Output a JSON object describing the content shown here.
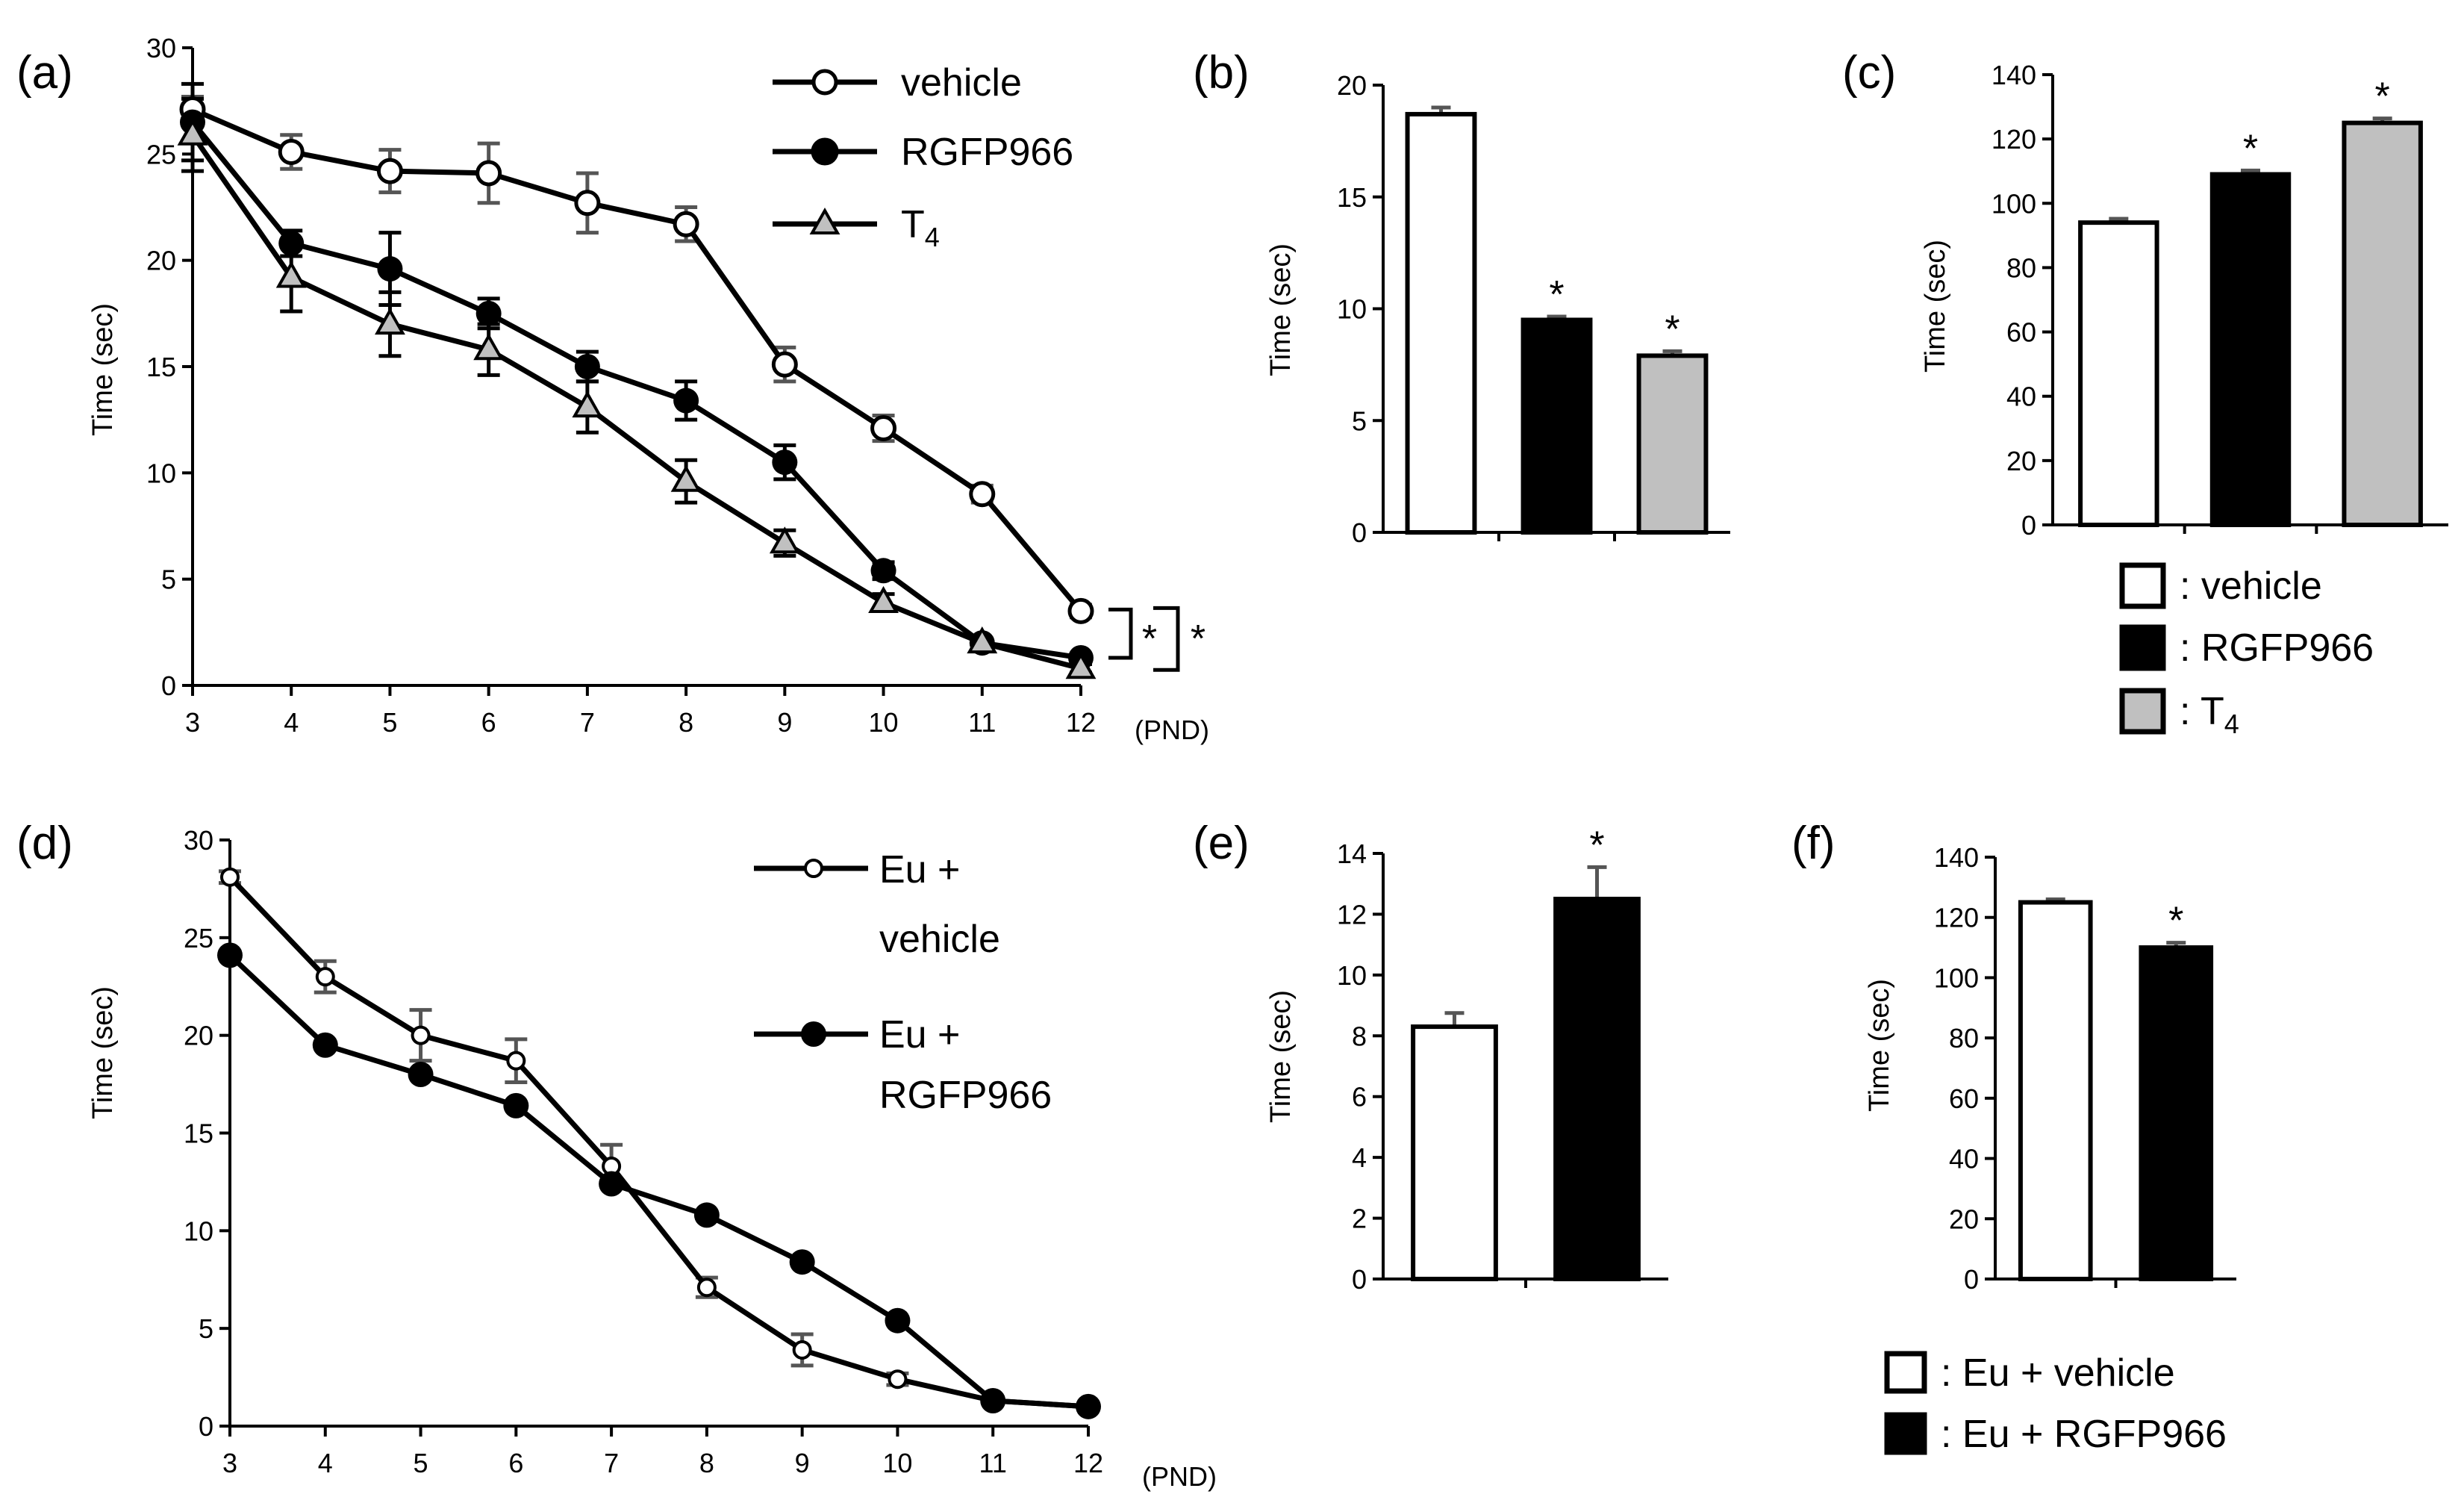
{
  "figure": {
    "colors": {
      "vehicle": "#ffffff",
      "rgfp966": "#000000",
      "t4": "#c0c0c0",
      "axis": "#000000",
      "errorbar": "#555555"
    },
    "legend_top": [
      {
        "label": "vehicle",
        "marker": "open-circle"
      },
      {
        "label": "RGFP966",
        "marker": "filled-circle"
      },
      {
        "label": "T",
        "sub": "4",
        "marker": "gray-triangle"
      }
    ],
    "legend_bottom": [
      {
        "label_line1": "Eu +",
        "label_line2": "vehicle",
        "marker": "open-circle"
      },
      {
        "label_line1": "Eu +",
        "label_line2": "RGFP966",
        "marker": "filled-circle"
      }
    ],
    "bar_legend_top": [
      {
        "label": ": vehicle",
        "color": "#ffffff"
      },
      {
        "label": ": RGFP966",
        "color": "#000000"
      },
      {
        "label": ": T",
        "sub": "4",
        "color": "#c0c0c0"
      }
    ],
    "bar_legend_bottom": [
      {
        "label": ": Eu + vehicle",
        "color": "#ffffff"
      },
      {
        "label": ": Eu + RGFP966",
        "color": "#000000"
      }
    ]
  },
  "chart_data": [
    {
      "id": "a",
      "panel_label": "(a)",
      "type": "line",
      "ylabel": "Time (sec)",
      "x_unit": "(PND)",
      "x": [
        3,
        4,
        5,
        6,
        7,
        8,
        9,
        10,
        11,
        12
      ],
      "ylim": [
        0,
        30
      ],
      "yticks": [
        0,
        5,
        10,
        15,
        20,
        25,
        30
      ],
      "series": [
        {
          "name": "vehicle",
          "marker": "open-circle",
          "values": [
            27.1,
            25.1,
            24.2,
            24.1,
            22.7,
            21.7,
            15.1,
            12.1,
            9.0,
            3.5
          ],
          "err": [
            0.6,
            0.8,
            1.0,
            1.4,
            1.4,
            0.8,
            0.8,
            0.6,
            0.4,
            0.3
          ]
        },
        {
          "name": "RGFP966",
          "marker": "filled-circle",
          "values": [
            26.5,
            20.8,
            19.6,
            17.5,
            15.0,
            13.4,
            10.5,
            5.4,
            2.0,
            1.3
          ],
          "err": [
            1.8,
            0.6,
            1.7,
            0.7,
            0.7,
            0.9,
            0.8,
            0.4,
            0.2,
            0.2
          ]
        },
        {
          "name": "T4",
          "marker": "gray-triangle",
          "values": [
            25.9,
            19.2,
            17.0,
            15.8,
            13.1,
            9.6,
            6.7,
            3.9,
            2.0,
            0.8
          ],
          "err": [
            1.7,
            1.6,
            1.5,
            1.2,
            1.2,
            1.0,
            0.6,
            0.4,
            0.2,
            0.2
          ]
        }
      ],
      "annotations": [
        "*",
        "*"
      ]
    },
    {
      "id": "b",
      "panel_label": "(b)",
      "type": "bar",
      "ylabel": "Time (sec)",
      "categories": [
        "vehicle",
        "RGFP966",
        "T4"
      ],
      "values": [
        18.7,
        9.5,
        7.9
      ],
      "err": [
        0.3,
        0.15,
        0.2
      ],
      "ylim": [
        0,
        20
      ],
      "yticks": [
        0,
        5,
        10,
        15,
        20
      ],
      "significance": [
        "",
        "*",
        "*"
      ]
    },
    {
      "id": "c",
      "panel_label": "(c)",
      "type": "bar",
      "ylabel": "Time (sec)",
      "categories": [
        "vehicle",
        "RGFP966",
        "T4"
      ],
      "values": [
        94,
        109,
        125
      ],
      "err": [
        1.2,
        1.2,
        1.4
      ],
      "ylim": [
        0,
        140
      ],
      "yticks": [
        0,
        20,
        40,
        60,
        80,
        100,
        120,
        140
      ],
      "significance": [
        "",
        "*",
        "*"
      ]
    },
    {
      "id": "d",
      "panel_label": "(d)",
      "type": "line",
      "ylabel": "Time (sec)",
      "x_unit": "(PND)",
      "x": [
        3,
        4,
        5,
        6,
        7,
        8,
        9,
        10,
        11,
        12
      ],
      "ylim": [
        0,
        30
      ],
      "yticks": [
        0,
        5,
        10,
        15,
        20,
        25,
        30
      ],
      "series": [
        {
          "name": "Eu + vehicle",
          "marker": "open-circle",
          "values": [
            28.1,
            23.0,
            20.0,
            18.7,
            13.3,
            7.1,
            3.9,
            2.4,
            1.3,
            1.0
          ],
          "err": [
            0.3,
            0.8,
            1.3,
            1.1,
            1.1,
            0.5,
            0.8,
            0.3,
            0.2,
            0.2
          ]
        },
        {
          "name": "Eu + RGFP966",
          "marker": "filled-circle",
          "values": [
            24.1,
            19.5,
            18.0,
            16.4,
            12.4,
            10.8,
            8.4,
            5.4,
            1.3,
            1.0
          ],
          "err": [
            0,
            0,
            0,
            0,
            0,
            0,
            0,
            0,
            0,
            0
          ]
        }
      ]
    },
    {
      "id": "e",
      "panel_label": "(e)",
      "type": "bar",
      "ylabel": "Time (sec)",
      "categories": [
        "Eu + vehicle",
        "Eu + RGFP966"
      ],
      "values": [
        8.3,
        12.5
      ],
      "err": [
        0.45,
        1.05
      ],
      "ylim": [
        0,
        14
      ],
      "yticks": [
        0,
        2,
        4,
        6,
        8,
        10,
        12,
        14
      ],
      "significance": [
        "",
        "*"
      ]
    },
    {
      "id": "f",
      "panel_label": "(f)",
      "type": "bar",
      "ylabel": "Time (sec)",
      "categories": [
        "Eu + vehicle",
        "Eu + RGFP966"
      ],
      "values": [
        125,
        110
      ],
      "err": [
        1.0,
        1.6
      ],
      "ylim": [
        0,
        140
      ],
      "yticks": [
        0,
        20,
        40,
        60,
        80,
        100,
        120,
        140
      ],
      "significance": [
        "",
        "*"
      ]
    }
  ]
}
